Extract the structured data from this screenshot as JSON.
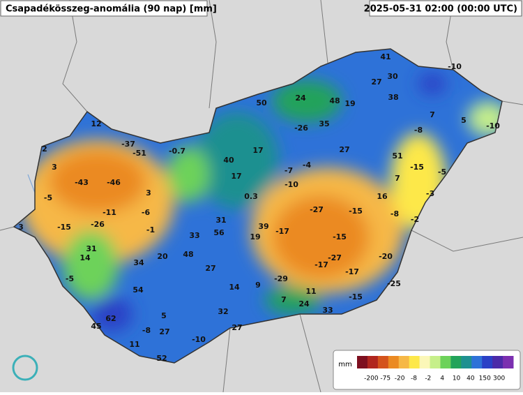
{
  "header": {
    "title": "Csapadékösszeg-anomália (90 nap) [mm]",
    "timestamp": "2025-05-31 02:00 (00:00 UTC)"
  },
  "stations": [
    "12",
    "2",
    "3",
    "-37",
    "-51",
    "-0.7",
    "-43",
    "-46",
    "3",
    "-5",
    "-11",
    "-6",
    "-26",
    "-15",
    "3",
    "-1",
    "31",
    "14",
    "20",
    "48",
    "33",
    "56",
    "31",
    "34",
    "27",
    "-5",
    "54",
    "14",
    "9",
    "62",
    "45",
    "5",
    "-8",
    "27",
    "32",
    "27",
    "11",
    "-10",
    "52",
    "40",
    "17",
    "17",
    "0.3",
    "39",
    "19",
    "-17",
    "-7",
    "-4",
    "-10",
    "-27",
    "-15",
    "-15",
    "-27",
    "-17",
    "-17",
    "-29",
    "7",
    "11",
    "24",
    "33",
    "-15",
    "-25",
    "-20",
    "-8",
    "-2",
    "-3",
    "-5",
    "-15",
    "51",
    "7",
    "16",
    "27",
    "35",
    "-26",
    "24",
    "48",
    "19",
    "50",
    "41",
    "30",
    "27",
    "38",
    "-10",
    "7",
    "5",
    "-8",
    "-10"
  ],
  "legend": {
    "unit": "mm",
    "colors": [
      "#7d0f1f",
      "#b0261e",
      "#d4531c",
      "#eb8a22",
      "#f6b846",
      "#fde84a",
      "#fbf7b8",
      "#c6ef8a",
      "#6dd25a",
      "#22a35a",
      "#1e9090",
      "#2e72d8",
      "#2a40c6",
      "#4b2aa8",
      "#7b2fb0"
    ],
    "ticks": [
      "-200",
      "-75",
      "-20",
      "-8",
      "-2",
      "4",
      "10",
      "40",
      "150",
      "300"
    ]
  }
}
